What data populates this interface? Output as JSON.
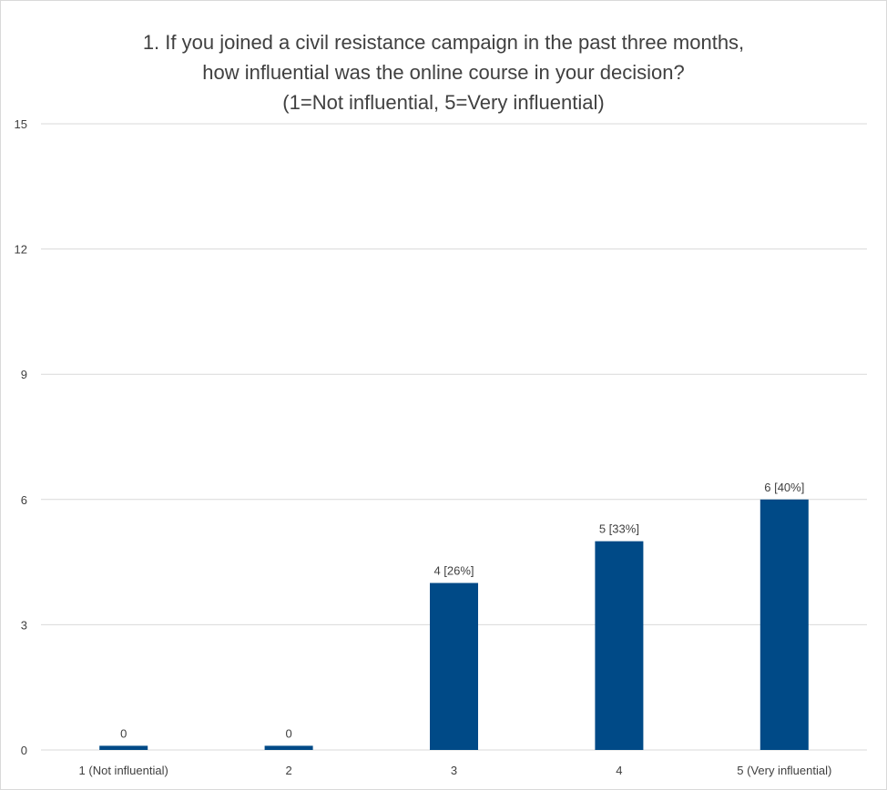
{
  "chart_data": {
    "type": "bar",
    "title_lines": [
      "1. If you joined a civil resistance campaign in the past three months,",
      "how influential was the online course in your decision?",
      "(1=Not influential,  5=Very influential)"
    ],
    "categories": [
      "1 (Not influential)",
      "2",
      "3",
      "4",
      "5 (Very influential)"
    ],
    "values": [
      0.1,
      0.1,
      4,
      5,
      6
    ],
    "data_labels": [
      "0",
      "0",
      "4 [26%]",
      "5 [33%]",
      "6 [40%]"
    ],
    "ylim": [
      0,
      15
    ],
    "yticks": [
      0,
      3,
      6,
      9,
      12,
      15
    ],
    "grid": true,
    "bar_color": "#004a87",
    "gridline_color": "#d9d9d9"
  }
}
